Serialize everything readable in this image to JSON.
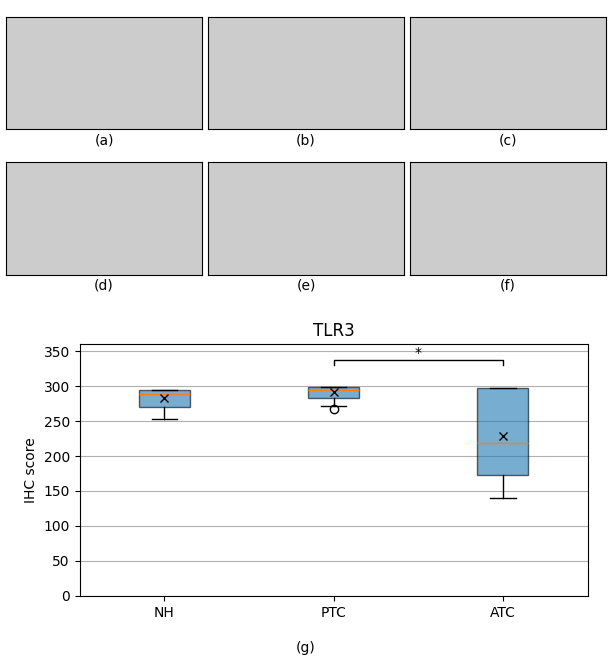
{
  "chart_data": {
    "type": "box",
    "title": "TLR3",
    "ylabel": "IHC score",
    "categories": [
      "NH",
      "PTC",
      "ATC"
    ],
    "stats": [
      {
        "q1": 270,
        "median": 289,
        "q3": 295,
        "mean": 283,
        "whisker_low": 253,
        "whisker_high": 295,
        "outliers": []
      },
      {
        "q1": 283,
        "median": 294,
        "q3": 299,
        "mean": 292,
        "whisker_low": 271,
        "whisker_high": 299,
        "outliers": [
          268
        ]
      },
      {
        "q1": 173,
        "median": 218,
        "q3": 298,
        "mean": 228,
        "whisker_low": 140,
        "whisker_high": 298,
        "outliers": []
      }
    ],
    "ylim": [
      0,
      360
    ],
    "yticks": [
      0,
      50,
      100,
      150,
      200,
      250,
      300,
      350
    ],
    "grid": true,
    "annotations": [
      {
        "text": "*",
        "from": "PTC",
        "to": "ATC",
        "y": 338
      }
    ],
    "panel_labels": [
      "(a)",
      "(b)",
      "(c)",
      "(d)",
      "(e)",
      "(f)"
    ],
    "figure_label": "(g)"
  }
}
